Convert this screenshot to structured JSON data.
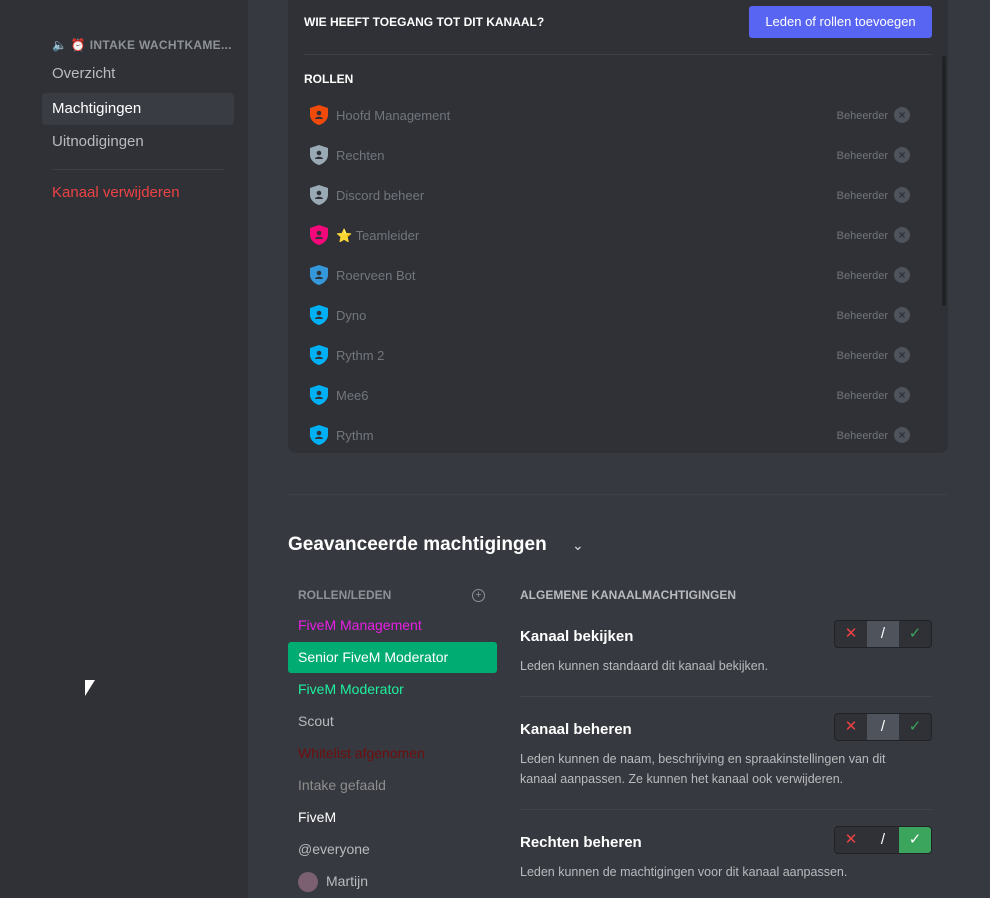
{
  "sidebar": {
    "channel": "🔈 ⏰ INTAKE WACHTKAME...",
    "items": [
      {
        "label": "Overzicht"
      },
      {
        "label": "Machtigingen",
        "active": true
      },
      {
        "label": "Uitnodigingen"
      }
    ],
    "delete": "Kanaal verwijderen"
  },
  "access": {
    "title": "WIE HEEFT TOEGANG TOT DIT KANAAL?",
    "add_button": "Leden of rollen toevoegen",
    "roles_header": "ROLLEN",
    "roles": [
      {
        "name": "Hoofd Management",
        "perm": "Beheerder",
        "color": "#f04a0a"
      },
      {
        "name": "Rechten",
        "perm": "Beheerder",
        "color": "#99aab5"
      },
      {
        "name": "Discord beheer",
        "perm": "Beheerder",
        "color": "#99aab5"
      },
      {
        "name": "⭐ Teamleider",
        "perm": "Beheerder",
        "color": "#f5087a"
      },
      {
        "name": "Roerveen Bot",
        "perm": "Beheerder",
        "color": "#3498db"
      },
      {
        "name": "Dyno",
        "perm": "Beheerder",
        "color": "#00b0f4"
      },
      {
        "name": "Rythm 2",
        "perm": "Beheerder",
        "color": "#00b0f4"
      },
      {
        "name": "Mee6",
        "perm": "Beheerder",
        "color": "#00b0f4"
      },
      {
        "name": "Rythm",
        "perm": "Beheerder",
        "color": "#00b0f4"
      }
    ]
  },
  "advanced": {
    "title": "Geavanceerde machtigingen",
    "list_header": "ROLLEN/LEDEN",
    "list": [
      {
        "name": "FiveM Management",
        "color": "#e91ee6"
      },
      {
        "name": "Senior FiveM Moderator",
        "color": "#ffffff",
        "selected": true
      },
      {
        "name": "FiveM Moderator",
        "color": "#1ef0a0"
      },
      {
        "name": "Scout",
        "color": "#b9bbbe"
      },
      {
        "name": "Whitelist afgenomen",
        "color": "#6e0e0e"
      },
      {
        "name": "Intake gefaald",
        "color": "#8e8e8e"
      },
      {
        "name": "FiveM",
        "color": "#ffffff"
      },
      {
        "name": "@everyone",
        "color": "#b9bbbe"
      },
      {
        "name": "Martijn",
        "color": "#b9bbbe",
        "avatar": true
      }
    ],
    "perm_header": "ALGEMENE KANAALMACHTIGINGEN",
    "perms": [
      {
        "title": "Kanaal bekijken",
        "desc": "Leden kunnen standaard dit kanaal bekijken.",
        "state": "neutral"
      },
      {
        "title": "Kanaal beheren",
        "desc": "Leden kunnen de naam, beschrijving en spraakinstellingen van dit kanaal aanpassen. Ze kunnen het kanaal ook verwijderen.",
        "state": "neutral"
      },
      {
        "title": "Rechten beheren",
        "desc": "Leden kunnen de machtigingen voor dit kanaal aanpassen.",
        "state": "allow"
      }
    ]
  }
}
